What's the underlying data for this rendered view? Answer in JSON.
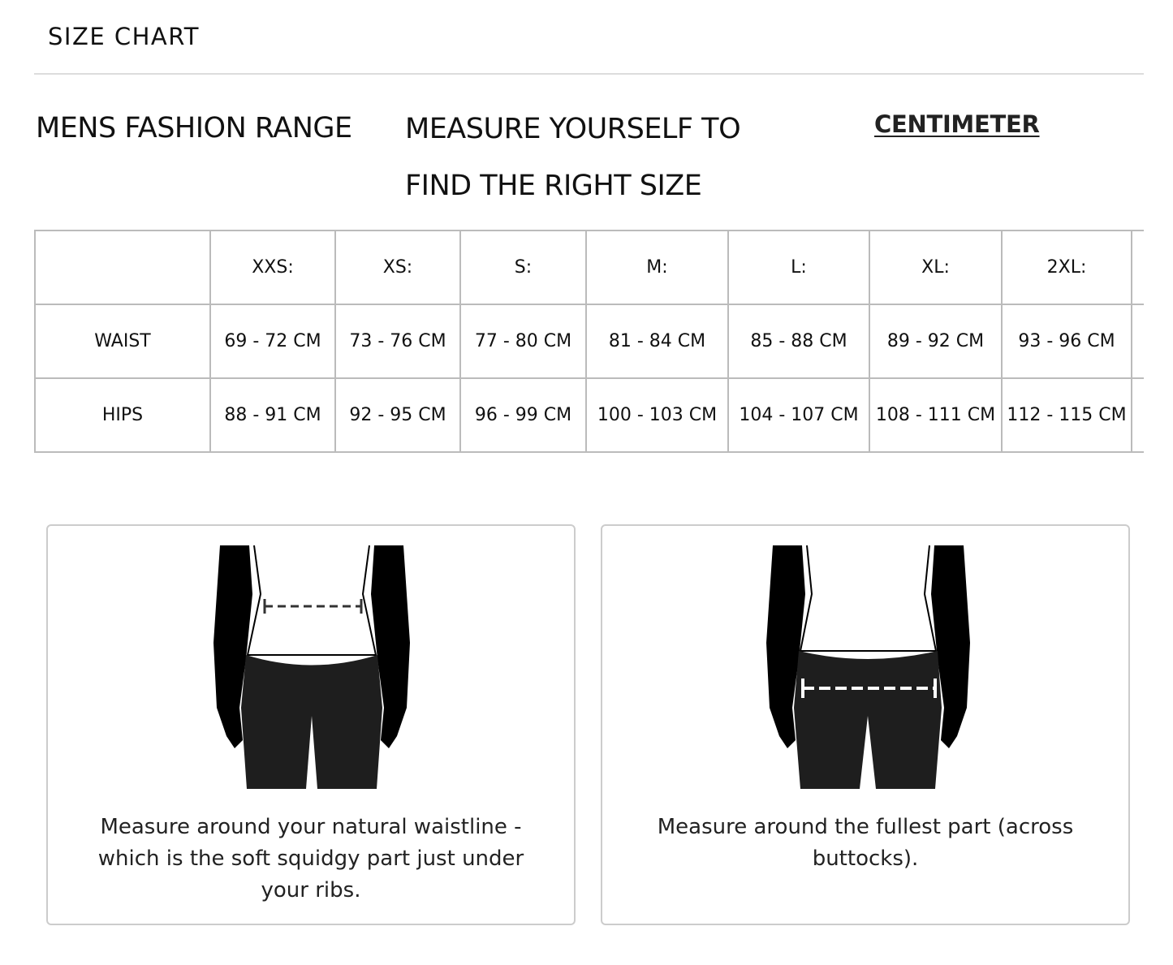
{
  "header": {
    "title": "SIZE CHART"
  },
  "section": {
    "range_title": "MENS FASHION RANGE",
    "instruction": "MEASURE YOURSELF TO FIND THE RIGHT SIZE",
    "unit_toggle": "CENTIMETER"
  },
  "table": {
    "columns": [
      "",
      "XXS:",
      "XS:",
      "S:",
      "M:",
      "L:",
      "XL:",
      "2XL:",
      ""
    ],
    "rows": [
      {
        "label": "WAIST",
        "values": [
          "69 - 72 CM",
          "73 - 76 CM",
          "77 - 80 CM",
          "81 - 84 CM",
          "85 - 88 CM",
          "89 - 92 CM",
          "93 - 96 CM",
          ""
        ]
      },
      {
        "label": "HIPS",
        "values": [
          "88 - 91 CM",
          "92 - 95 CM",
          "96 - 99 CM",
          "100 - 103 CM",
          "104 - 107 CM",
          "108 - 111 CM",
          "112 - 115 CM",
          ""
        ]
      }
    ]
  },
  "guides": [
    {
      "icon": "waist-measure-illustration",
      "text": "Measure around your natural waistline - which is the soft squidgy part just under your ribs."
    },
    {
      "icon": "hips-measure-illustration",
      "text": "Measure around the fullest part (across buttocks)."
    }
  ]
}
